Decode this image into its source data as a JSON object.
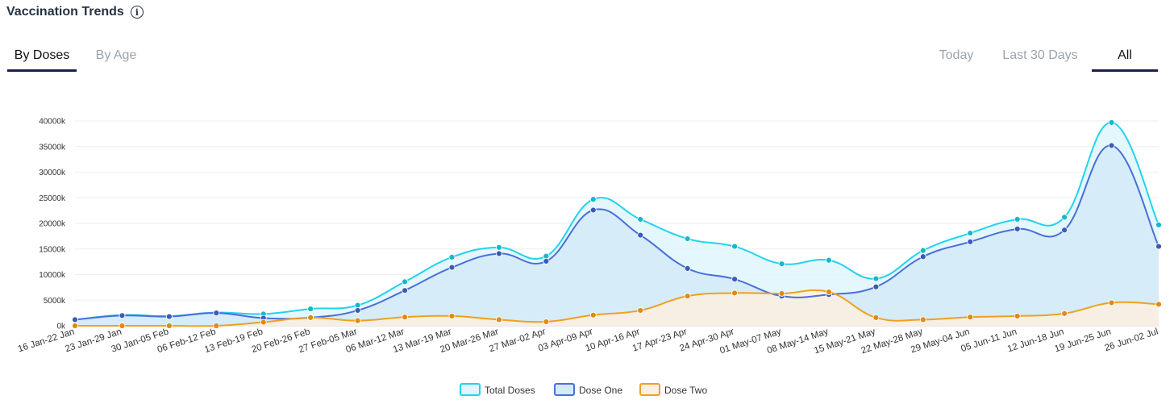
{
  "header": {
    "title": "Vaccination Trends",
    "info_icon": "info-icon"
  },
  "left_tabs": [
    {
      "label": "By Doses",
      "active": true
    },
    {
      "label": "By Age",
      "active": false
    }
  ],
  "right_tabs": [
    {
      "label": "Today",
      "active": false
    },
    {
      "label": "Last 30 Days",
      "active": false
    },
    {
      "label": "All",
      "active": true
    }
  ],
  "chart_data": {
    "type": "area",
    "categories": [
      "16 Jan-22 Jan",
      "23 Jan-29 Jan",
      "30 Jan-05 Feb",
      "06 Feb-12 Feb",
      "13 Feb-19 Feb",
      "20 Feb-26 Feb",
      "27 Feb-05 Mar",
      "06 Mar-12 Mar",
      "13 Mar-19 Mar",
      "20 Mar-26 Mar",
      "27 Mar-02 Apr",
      "03 Apr-09 Apr",
      "10 Apr-16 Apr",
      "17 Apr-23 Apr",
      "24 Apr-30 Apr",
      "01 May-07 May",
      "08 May-14 May",
      "15 May-21 May",
      "22 May-28 May",
      "29 May-04 Jun",
      "05 Jun-11 Jun",
      "12 Jun-18 Jun",
      "19 Jun-25 Jun",
      "26 Jun-02 Jul"
    ],
    "yticks": [
      "0k",
      "5000k",
      "10000k",
      "15000k",
      "20000k",
      "25000k",
      "30000k",
      "35000k",
      "40000k"
    ],
    "ylim": [
      0,
      40000
    ],
    "series": [
      {
        "name": "Total Doses",
        "color": "#22d3ee",
        "fill": "#dff6fc",
        "values": [
          1200,
          2100,
          1900,
          2600,
          2300,
          3300,
          4000,
          8600,
          13400,
          15300,
          13600,
          24700,
          20800,
          17000,
          15500,
          12100,
          12800,
          9200,
          14700,
          18100,
          20800,
          21200,
          39700,
          19700
        ]
      },
      {
        "name": "Dose One",
        "color": "#4a6fd8",
        "fill": "#d4eaf8",
        "values": [
          1200,
          2000,
          1800,
          2500,
          1500,
          1600,
          3000,
          6900,
          11400,
          14100,
          12600,
          22600,
          17700,
          11200,
          9100,
          5800,
          6100,
          7600,
          13500,
          16400,
          18900,
          18700,
          35200,
          15500
        ]
      },
      {
        "name": "Dose Two",
        "color": "#f0a020",
        "fill": "#fdf0e0",
        "values": [
          0,
          0,
          0,
          0,
          700,
          1600,
          1000,
          1700,
          1900,
          1200,
          800,
          2100,
          3000,
          5800,
          6400,
          6300,
          6600,
          1600,
          1200,
          1700,
          1900,
          2400,
          4500,
          4200
        ]
      }
    ],
    "legend": "bottom-center",
    "grid": true
  }
}
